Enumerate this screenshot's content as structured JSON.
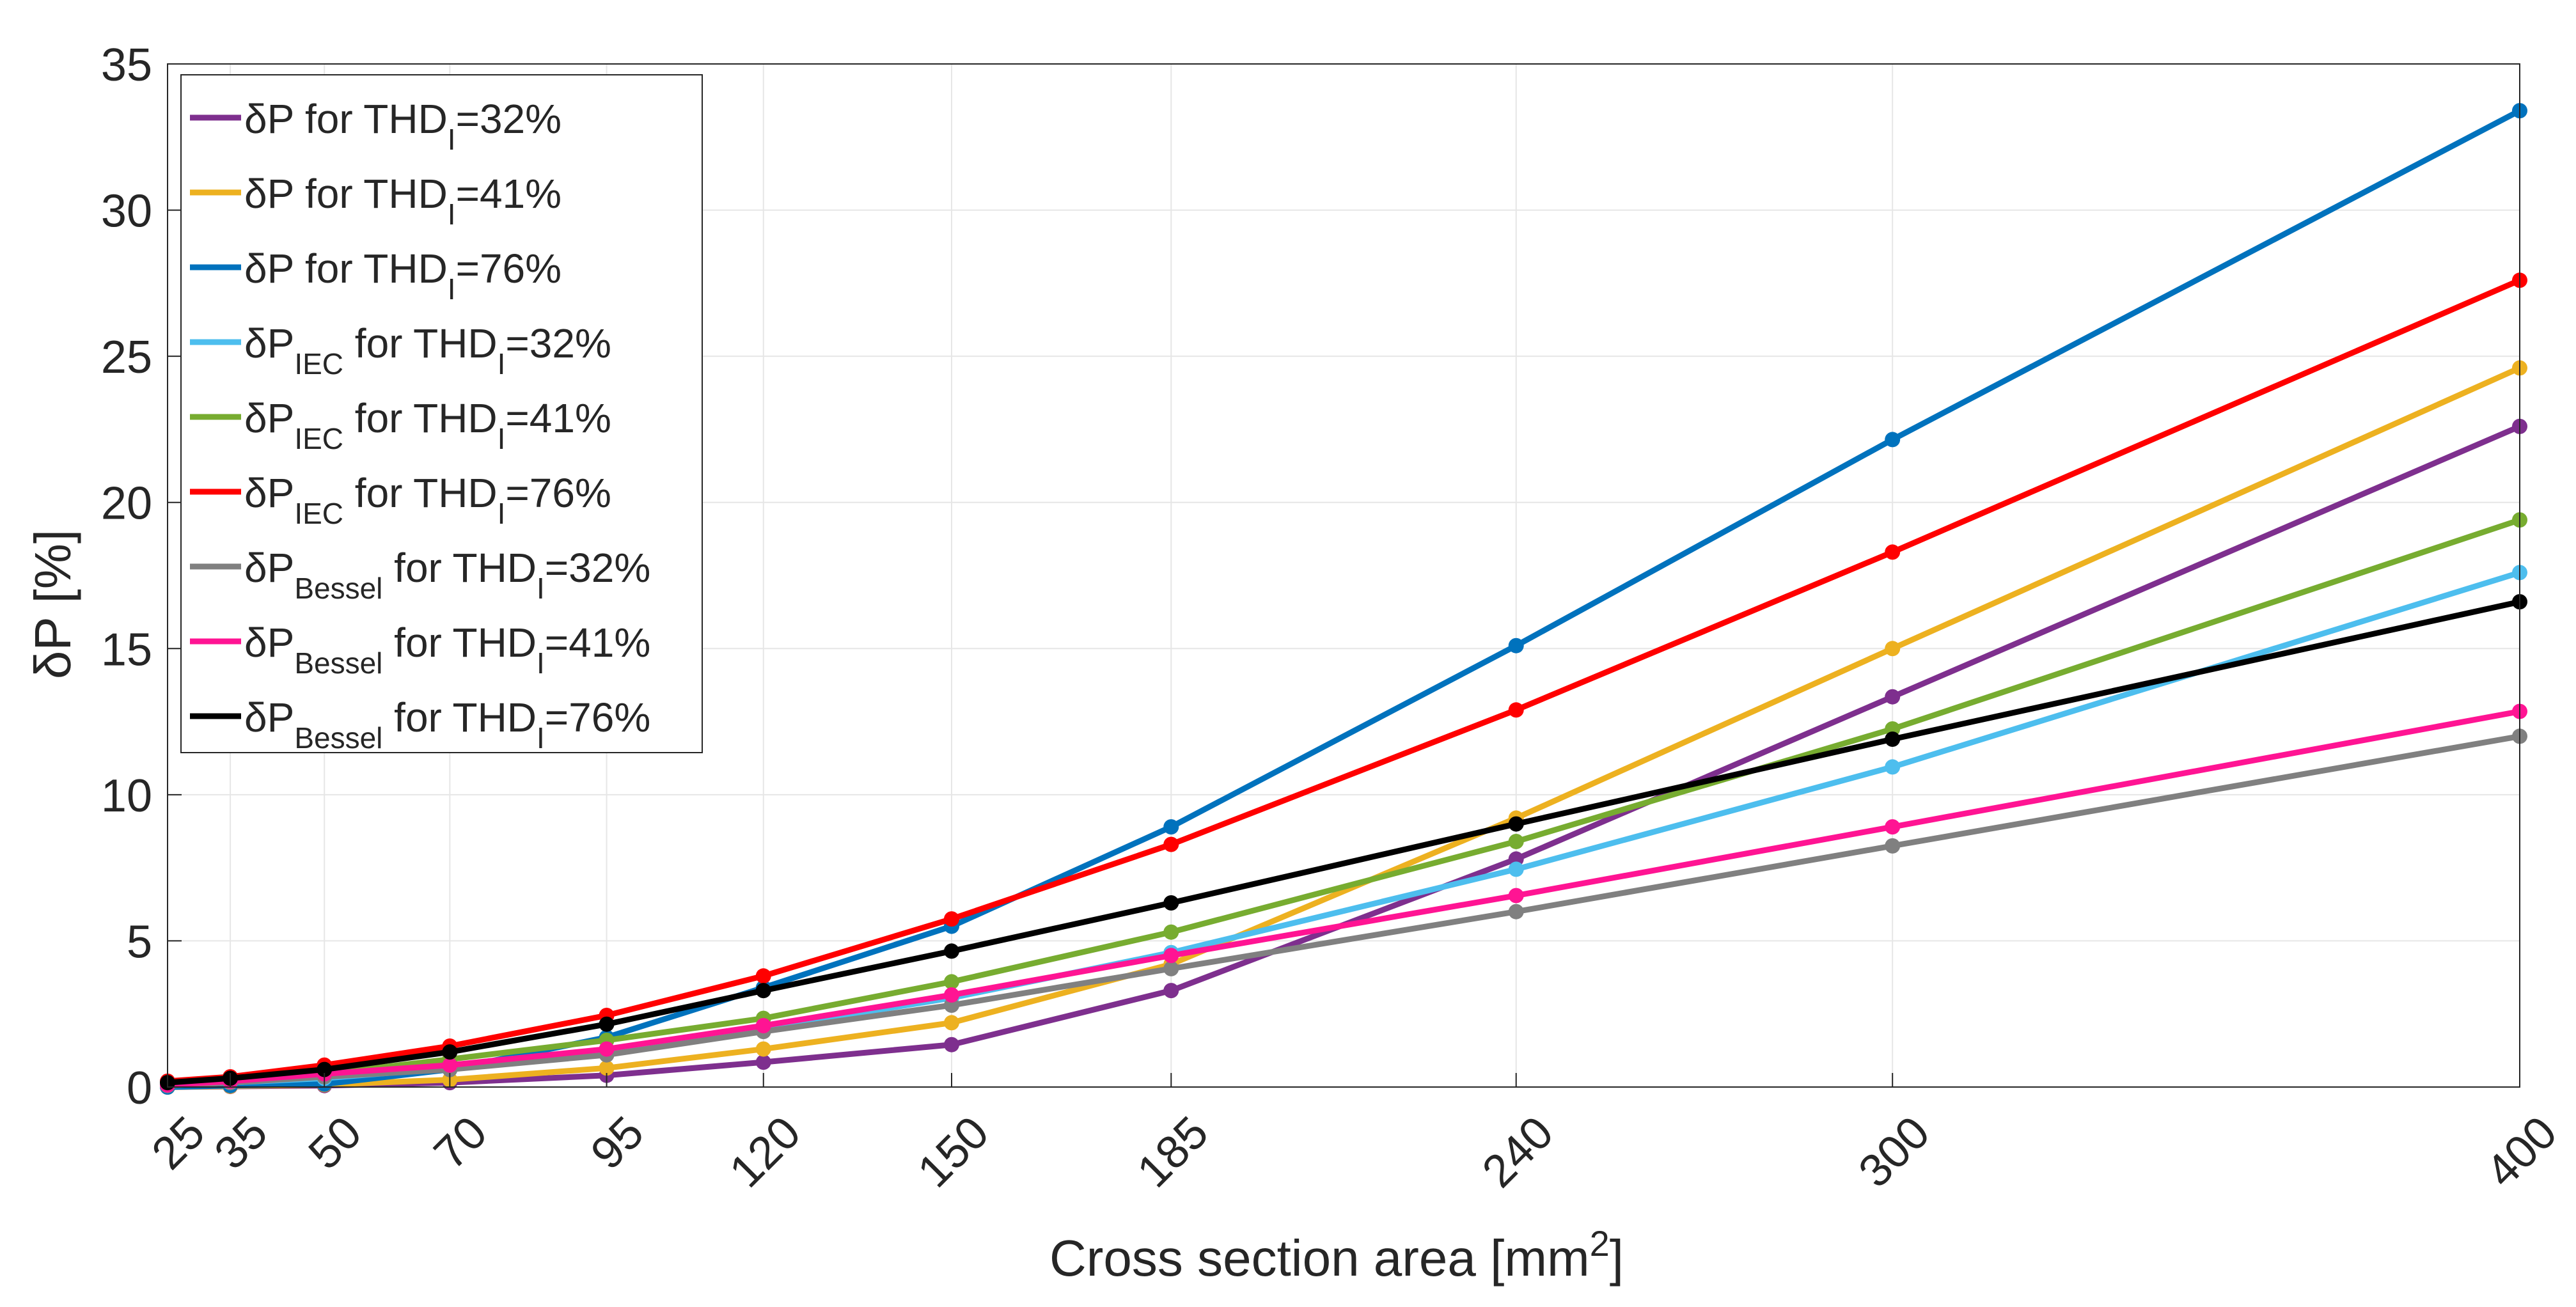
{
  "chart_data": {
    "type": "line",
    "title": "",
    "xlabel": "Cross section area [mm",
    "xlabel_sup": "2",
    "xlabel_end": "]",
    "ylabel": "δP [%]",
    "x": [
      25,
      35,
      50,
      70,
      95,
      120,
      150,
      185,
      240,
      300,
      400
    ],
    "x_tick_labels": [
      "25",
      "35",
      "50",
      "70",
      "95",
      "120",
      "150",
      "185",
      "240",
      "300",
      "400"
    ],
    "xlim": [
      25,
      400
    ],
    "ylim": [
      0,
      35
    ],
    "y_ticks": [
      0,
      5,
      10,
      15,
      20,
      25,
      30,
      35
    ],
    "y_tick_labels": [
      "0",
      "5",
      "10",
      "15",
      "20",
      "25",
      "30",
      "35"
    ],
    "grid": true,
    "legend_position": "top-left",
    "series": [
      {
        "name": "δP for THDI=32%",
        "legend": {
          "base": "δP",
          "sub": "",
          "mid": " for THD",
          "sub2": "I",
          "end": "=32%"
        },
        "color": "#7E2F8E",
        "values": [
          0.0,
          0.02,
          0.05,
          0.15,
          0.4,
          0.85,
          1.45,
          3.3,
          7.8,
          13.35,
          22.6
        ]
      },
      {
        "name": "δP for THDI=41%",
        "legend": {
          "base": "δP",
          "sub": "",
          "mid": " for THD",
          "sub2": "I",
          "end": "=41%"
        },
        "color": "#EDB120",
        "values": [
          0.0,
          0.03,
          0.08,
          0.25,
          0.65,
          1.3,
          2.2,
          4.2,
          9.2,
          15.0,
          24.6
        ]
      },
      {
        "name": "δP for THDI=76%",
        "legend": {
          "base": "δP",
          "sub": "",
          "mid": " for THD",
          "sub2": "I",
          "end": "=76%"
        },
        "color": "#0072BD",
        "values": [
          0.0,
          0.05,
          0.1,
          0.6,
          1.7,
          3.4,
          5.5,
          8.9,
          15.1,
          22.15,
          33.4
        ]
      },
      {
        "name": "δPIEC for THDI=32%",
        "legend": {
          "base": "δP",
          "sub": "IEC",
          "mid": " for THD",
          "sub2": "I",
          "end": "=32%"
        },
        "color": "#4DBEEE",
        "values": [
          0.05,
          0.15,
          0.3,
          0.65,
          1.3,
          2.0,
          3.05,
          4.6,
          7.45,
          10.95,
          17.6
        ]
      },
      {
        "name": "δPIEC for THDI=41%",
        "legend": {
          "base": "δP",
          "sub": "IEC",
          "mid": " for THD",
          "sub2": "I",
          "end": "=41%"
        },
        "color": "#77AC30",
        "values": [
          0.08,
          0.2,
          0.45,
          0.95,
          1.6,
          2.35,
          3.6,
          5.3,
          8.4,
          12.25,
          19.4
        ]
      },
      {
        "name": "δPIEC for THDI=76%",
        "legend": {
          "base": "δP",
          "sub": "IEC",
          "mid": " for THD",
          "sub2": "I",
          "end": "=76%"
        },
        "color": "#FF0000",
        "values": [
          0.2,
          0.35,
          0.75,
          1.4,
          2.45,
          3.8,
          5.75,
          8.3,
          12.9,
          18.3,
          27.6
        ]
      },
      {
        "name": "δPBessel for THDI=32%",
        "legend": {
          "base": "δP",
          "sub": "Bessel",
          "mid": " for THD",
          "sub2": "I",
          "end": "=32%"
        },
        "color": "#808080",
        "values": [
          0.05,
          0.15,
          0.35,
          0.6,
          1.1,
          1.9,
          2.8,
          4.05,
          6.0,
          8.25,
          12.0
        ]
      },
      {
        "name": "δPBessel for THDI=41%",
        "legend": {
          "base": "δP",
          "sub": "Bessel",
          "mid": " for THD",
          "sub2": "I",
          "end": "=41%"
        },
        "color": "#FF1493",
        "values": [
          0.07,
          0.2,
          0.45,
          0.75,
          1.3,
          2.1,
          3.15,
          4.5,
          6.55,
          8.9,
          12.85
        ]
      },
      {
        "name": "δPBessel for THDI=76%",
        "legend": {
          "base": "δP",
          "sub": "Bessel",
          "mid": " for THD",
          "sub2": "I",
          "end": "=76%"
        },
        "color": "#000000",
        "values": [
          0.15,
          0.3,
          0.6,
          1.2,
          2.15,
          3.3,
          4.65,
          6.3,
          9.0,
          11.9,
          16.6
        ]
      }
    ]
  }
}
